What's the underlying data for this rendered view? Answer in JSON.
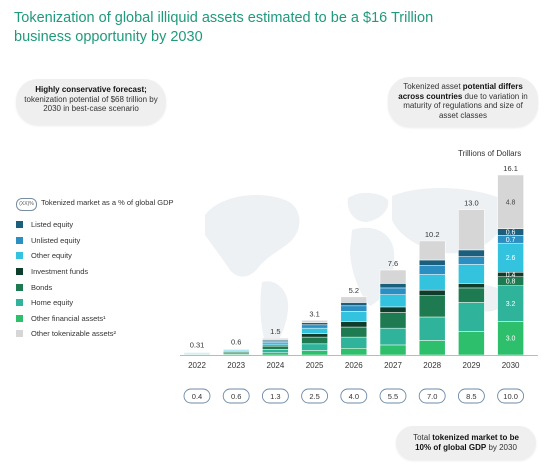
{
  "title": "Tokenization of global illiquid assets estimated to be a $16 Trillion business opportunity by 2030",
  "callouts": {
    "left_bold": "Highly conservative forecast;",
    "left_text": "tokenization potential of $68 trillion by 2030 in best-case scenario",
    "right_pre": "Tokenized asset",
    "right_bold": "potential differs across countries",
    "right_post": "due to variation in maturity of regulations and size of asset classes",
    "bottom_pre": "Total",
    "bottom_bold": "tokenized market to be 10% of global GDP",
    "bottom_post": "by 2030"
  },
  "units_label": "Trillions of Dollars",
  "legend": {
    "badge": "(XX)%",
    "gdp_label": "Tokenized market as a % of global GDP",
    "items": [
      {
        "label": "Listed equity",
        "color": "#1c5f7c"
      },
      {
        "label": "Unlisted equity",
        "color": "#2b8fc2"
      },
      {
        "label": "Other equity",
        "color": "#33c3de"
      },
      {
        "label": "Investment funds",
        "color": "#0f3d2b"
      },
      {
        "label": "Bonds",
        "color": "#1e7a50"
      },
      {
        "label": "Home equity",
        "color": "#2fb49b"
      },
      {
        "label": "Other financial assets¹",
        "color": "#2dbf6c"
      },
      {
        "label": "Other tokenizable assets²",
        "color": "#d6d6d6"
      }
    ]
  },
  "chart_data": {
    "type": "bar",
    "stacked": true,
    "categories": [
      "2022",
      "2023",
      "2024",
      "2025",
      "2026",
      "2027",
      "2028",
      "2029",
      "2030"
    ],
    "totals": [
      0.31,
      0.6,
      1.5,
      3.1,
      5.2,
      7.6,
      10.2,
      13.0,
      16.1
    ],
    "total_labels": [
      "0.31",
      "0.6",
      "1.5",
      "3.1",
      "5.2",
      "7.6",
      "10.2",
      "13.0",
      "16.1"
    ],
    "gdp_percent": [
      "0.4",
      "0.6",
      "1.3",
      "2.5",
      "4.0",
      "5.5",
      "7.0",
      "8.5",
      "10.0"
    ],
    "ylim": [
      0,
      16.1
    ],
    "series": [
      {
        "name": "Other financial assets¹",
        "color": "#2dbf6c",
        "values": [
          0.04,
          0.08,
          0.2,
          0.4,
          0.6,
          0.9,
          1.3,
          2.1,
          3.0
        ],
        "labels": [
          null,
          null,
          null,
          null,
          null,
          null,
          null,
          null,
          "3.0"
        ]
      },
      {
        "name": "Home equity",
        "color": "#2fb49b",
        "values": [
          0.06,
          0.12,
          0.3,
          0.6,
          1.0,
          1.5,
          2.1,
          2.6,
          3.2
        ],
        "labels": [
          null,
          null,
          null,
          null,
          null,
          null,
          null,
          null,
          "3.2"
        ]
      },
      {
        "name": "Bonds",
        "color": "#1e7a50",
        "values": [
          0.07,
          0.12,
          0.3,
          0.6,
          0.9,
          1.4,
          1.9,
          1.3,
          0.8
        ],
        "labels": [
          null,
          null,
          null,
          null,
          null,
          null,
          null,
          null,
          "0.8"
        ]
      },
      {
        "name": "Investment funds",
        "color": "#0f3d2b",
        "values": [
          0.02,
          0.05,
          0.1,
          0.3,
          0.5,
          0.5,
          0.5,
          0.4,
          0.4
        ],
        "labels": [
          null,
          null,
          null,
          null,
          null,
          null,
          null,
          null,
          "0.4"
        ]
      },
      {
        "name": "Other equity",
        "color": "#33c3de",
        "values": [
          0.05,
          0.09,
          0.2,
          0.5,
          0.9,
          1.1,
          1.4,
          1.7,
          2.6
        ],
        "labels": [
          null,
          null,
          null,
          null,
          null,
          null,
          null,
          null,
          "2.6"
        ]
      },
      {
        "name": "Unlisted equity",
        "color": "#2b8fc2",
        "values": [
          0.03,
          0.06,
          0.15,
          0.3,
          0.5,
          0.6,
          0.8,
          0.7,
          0.7
        ],
        "labels": [
          null,
          null,
          null,
          null,
          null,
          null,
          null,
          null,
          "0.7"
        ]
      },
      {
        "name": "Listed equity",
        "color": "#1c5f7c",
        "values": [
          0.02,
          0.04,
          0.1,
          0.2,
          0.3,
          0.4,
          0.5,
          0.6,
          0.6
        ],
        "labels": [
          null,
          null,
          null,
          null,
          null,
          null,
          null,
          null,
          "0.6"
        ]
      },
      {
        "name": "Other tokenizable assets²",
        "color": "#d6d6d6",
        "values": [
          0.02,
          0.04,
          0.15,
          0.2,
          0.5,
          1.2,
          1.7,
          3.6,
          4.8
        ],
        "labels": [
          null,
          null,
          null,
          null,
          null,
          null,
          null,
          null,
          "4.8"
        ]
      }
    ]
  }
}
